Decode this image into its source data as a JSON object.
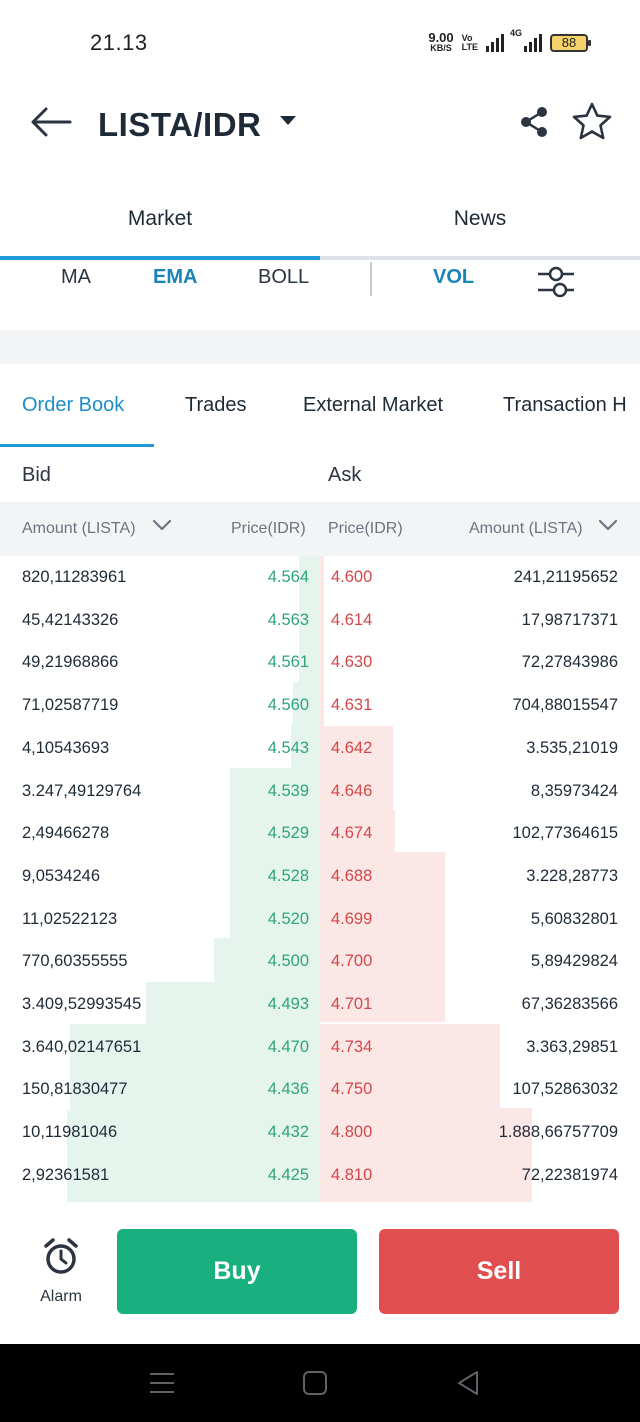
{
  "status_bar": {
    "time": "21.13",
    "net_speed_value": "9.00",
    "net_speed_unit": "KB/S",
    "volte_top": "Vo",
    "volte_bottom": "LTE",
    "network": "4G",
    "battery": "88"
  },
  "header": {
    "pair": "LISTA/IDR"
  },
  "main_tabs": [
    {
      "label": "Market",
      "active": true
    },
    {
      "label": "News",
      "active": false
    }
  ],
  "indicators": {
    "items": [
      {
        "label": "MA",
        "active": false
      },
      {
        "label": "EMA",
        "active": true
      },
      {
        "label": "BOLL",
        "active": false
      }
    ],
    "vol": "VOL"
  },
  "sub_tabs": [
    {
      "label": "Order Book",
      "active": true
    },
    {
      "label": "Trades",
      "active": false
    },
    {
      "label": "External Market",
      "active": false
    },
    {
      "label": "Transaction H",
      "active": false
    }
  ],
  "book_headers": {
    "bid": "Bid",
    "ask": "Ask",
    "bid_amount": "Amount (LISTA)",
    "bid_price": "Price(IDR)",
    "ask_price": "Price(IDR)",
    "ask_amount": "Amount (LISTA)"
  },
  "order_book": {
    "rows": [
      {
        "bid_amount": "820,11283961",
        "bid_price": "4.564",
        "ask_price": "4.600",
        "ask_amount": "241,21195652"
      },
      {
        "bid_amount": "45,42143326",
        "bid_price": "4.563",
        "ask_price": "4.614",
        "ask_amount": "17,98717371"
      },
      {
        "bid_amount": "49,21968866",
        "bid_price": "4.561",
        "ask_price": "4.630",
        "ask_amount": "72,27843986"
      },
      {
        "bid_amount": "71,02587719",
        "bid_price": "4.560",
        "ask_price": "4.631",
        "ask_amount": "704,88015547"
      },
      {
        "bid_amount": "4,10543693",
        "bid_price": "4.543",
        "ask_price": "4.642",
        "ask_amount": "3.535,21019"
      },
      {
        "bid_amount": "3.247,49129764",
        "bid_price": "4.539",
        "ask_price": "4.646",
        "ask_amount": "8,35973424"
      },
      {
        "bid_amount": "2,49466278",
        "bid_price": "4.529",
        "ask_price": "4.674",
        "ask_amount": "102,77364615"
      },
      {
        "bid_amount": "9,0534246",
        "bid_price": "4.528",
        "ask_price": "4.688",
        "ask_amount": "3.228,28773"
      },
      {
        "bid_amount": "11,02522123",
        "bid_price": "4.520",
        "ask_price": "4.699",
        "ask_amount": "5,60832801"
      },
      {
        "bid_amount": "770,60355555",
        "bid_price": "4.500",
        "ask_price": "4.700",
        "ask_amount": "5,89429824"
      },
      {
        "bid_amount": "3.409,52993545",
        "bid_price": "4.493",
        "ask_price": "4.701",
        "ask_amount": "67,36283566"
      },
      {
        "bid_amount": "3.640,02147651",
        "bid_price": "4.470",
        "ask_price": "4.734",
        "ask_amount": "3.363,29851"
      },
      {
        "bid_amount": "150,81830477",
        "bid_price": "4.436",
        "ask_price": "4.750",
        "ask_amount": "107,52863032"
      },
      {
        "bid_amount": "10,11981046",
        "bid_price": "4.432",
        "ask_price": "4.800",
        "ask_amount": "1.888,66757709"
      },
      {
        "bid_amount": "2,92361581",
        "bid_price": "4.425",
        "ask_price": "4.810",
        "ask_amount": "72,22381974"
      }
    ],
    "bid_color": "#2da57a",
    "ask_color": "#d3474a"
  },
  "actions": {
    "alarm_label": "Alarm",
    "buy_label": "Buy",
    "sell_label": "Sell",
    "buy_color": "#17b07e",
    "sell_color": "#e04e4f"
  }
}
